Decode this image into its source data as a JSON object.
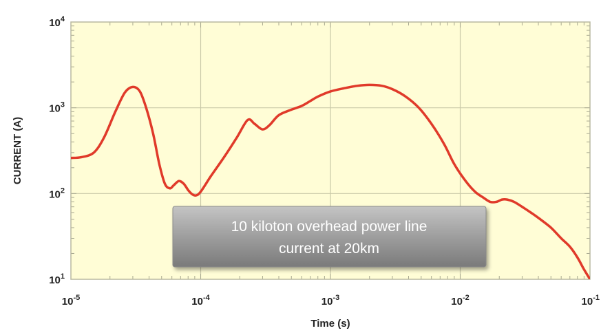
{
  "chart_data": {
    "type": "line",
    "title": "",
    "xlabel": "Time (s)",
    "ylabel": "CURRENT (A)",
    "x_scale": "log",
    "y_scale": "log",
    "xlim": [
      1e-05,
      0.1
    ],
    "ylim": [
      10,
      10000
    ],
    "x_ticks": [
      {
        "value": 1e-05,
        "base": "10",
        "exp": "-5"
      },
      {
        "value": 0.0001,
        "base": "10",
        "exp": "-4"
      },
      {
        "value": 0.001,
        "base": "10",
        "exp": "-3"
      },
      {
        "value": 0.01,
        "base": "10",
        "exp": "-2"
      },
      {
        "value": 0.1,
        "base": "10",
        "exp": "-1"
      }
    ],
    "y_ticks": [
      {
        "value": 10,
        "base": "10",
        "exp": "1"
      },
      {
        "value": 100,
        "base": "10",
        "exp": "2"
      },
      {
        "value": 1000,
        "base": "10",
        "exp": "3"
      },
      {
        "value": 10000,
        "base": "10",
        "exp": "4"
      }
    ],
    "grid": true,
    "background_color": "#fffdd6",
    "line_color": "#e03a2a",
    "series": [
      {
        "color": "#e03a2a",
        "x": [
          1e-05,
          1.2e-05,
          1.5e-05,
          1.8e-05,
          2.2e-05,
          2.6e-05,
          3e-05,
          3.4e-05,
          3.8e-05,
          4.3e-05,
          4.8e-05,
          5.3e-05,
          5.8e-05,
          6.2e-05,
          6.8e-05,
          7.4e-05,
          8e-05,
          8.6e-05,
          9.2e-05,
          0.0001,
          0.00012,
          0.00015,
          0.00019,
          0.00023,
          0.00026,
          0.0003,
          0.00034,
          0.0004,
          0.0005,
          0.0006,
          0.0007,
          0.0008,
          0.001,
          0.0013,
          0.0016,
          0.002,
          0.0025,
          0.003,
          0.0038,
          0.0048,
          0.006,
          0.0075,
          0.009,
          0.011,
          0.013,
          0.015,
          0.017,
          0.019,
          0.021,
          0.023,
          0.026,
          0.03,
          0.035,
          0.04,
          0.05,
          0.06,
          0.07,
          0.08,
          0.09,
          0.1
        ],
        "y": [
          260,
          265,
          300,
          450,
          900,
          1500,
          1750,
          1550,
          1000,
          500,
          220,
          130,
          115,
          125,
          140,
          130,
          110,
          98,
          95,
          105,
          160,
          260,
          450,
          720,
          650,
          560,
          630,
          820,
          950,
          1050,
          1200,
          1350,
          1550,
          1700,
          1800,
          1850,
          1800,
          1650,
          1350,
          1000,
          650,
          380,
          220,
          140,
          105,
          90,
          80,
          80,
          85,
          85,
          80,
          70,
          60,
          52,
          40,
          30,
          24,
          18,
          13,
          10
        ]
      }
    ],
    "annotation": {
      "text_line1": "10 kiloton overhead power line",
      "text_line2": "current at 20km"
    }
  }
}
